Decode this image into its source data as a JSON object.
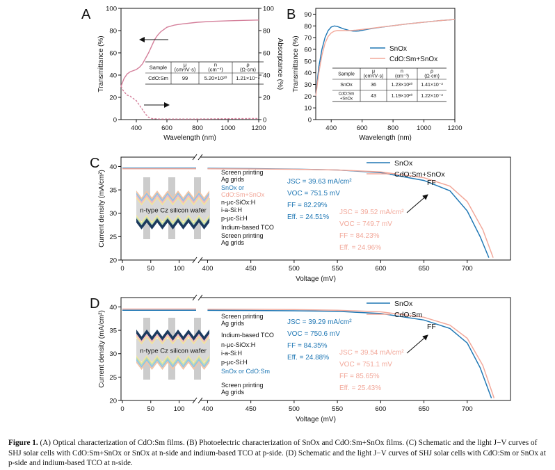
{
  "colors": {
    "blue": "#1f77b4",
    "pink": "#f2a89a",
    "tA": "#d47f9a",
    "gray": "#555555",
    "wafer": "#d8d8d8",
    "navy": "#1c3a5e",
    "ag": "#cccccc"
  },
  "panelA": {
    "label": "A",
    "chart_data": {
      "type": "line",
      "title": "",
      "xlabel": "Wavelength (nm)",
      "ylabel": "Transmittance (%)",
      "y2label": "Absorptance (%)",
      "xlim": [
        300,
        1200
      ],
      "ylim": [
        0,
        100
      ],
      "y2lim": [
        0,
        100
      ],
      "xticks": [
        "400",
        "600",
        "800",
        "1000",
        "1200"
      ],
      "yticks": [
        "0",
        "20",
        "40",
        "60",
        "80",
        "100"
      ],
      "y2ticks": [
        "0",
        "20",
        "40",
        "60",
        "80",
        "100"
      ],
      "series": [
        {
          "name": "Transmittance",
          "axis": "left",
          "style": "solid",
          "x": [
            300,
            320,
            340,
            360,
            380,
            400,
            420,
            440,
            460,
            480,
            500,
            520,
            540,
            560,
            580,
            600,
            650,
            700,
            800,
            900,
            1000,
            1100,
            1200
          ],
          "y": [
            30,
            37,
            41,
            43,
            44,
            45,
            47,
            50,
            55,
            60,
            66,
            72,
            76,
            79,
            81,
            83,
            85,
            86,
            87.5,
            88.3,
            88.8,
            89.2,
            89.5
          ]
        },
        {
          "name": "Absorptance",
          "axis": "right",
          "style": "dashed",
          "x": [
            300,
            310,
            320,
            340,
            360,
            380,
            400,
            420,
            440,
            460,
            480,
            500,
            550,
            600,
            800,
            1000,
            1200
          ],
          "y": [
            30,
            27,
            25,
            22,
            21,
            19,
            17,
            13,
            9,
            5,
            2,
            1,
            0.5,
            0.5,
            0.5,
            0.8,
            1
          ]
        }
      ]
    },
    "table": {
      "headers": [
        "Sample",
        "μ (cm²/V·s)",
        "n (cm⁻³)",
        "ρ (Ω·cm)"
      ],
      "rows": [
        [
          "CdO:Sm",
          "99",
          "5.20×10²⁰",
          "1.21×10⁻⁴"
        ]
      ]
    }
  },
  "panelB": {
    "label": "B",
    "chart_data": {
      "type": "line",
      "xlabel": "Wavelength (nm)",
      "ylabel": "Transmittance (%)",
      "xlim": [
        300,
        1200
      ],
      "ylim": [
        0,
        95
      ],
      "xticks": [
        "400",
        "600",
        "800",
        "1000",
        "1200"
      ],
      "yticks": [
        "0",
        "10",
        "20",
        "30",
        "40",
        "50",
        "60",
        "70",
        "80",
        "90"
      ],
      "series": [
        {
          "name": "SnOx",
          "x": [
            300,
            320,
            340,
            360,
            380,
            400,
            420,
            440,
            460,
            480,
            500,
            520,
            540,
            560,
            580,
            600,
            650,
            700,
            800,
            900,
            1000,
            1100,
            1200
          ],
          "y": [
            20,
            45,
            60,
            70,
            76,
            79,
            80,
            79.5,
            78.5,
            77.5,
            76.8,
            76,
            75.6,
            75.5,
            75.7,
            76.2,
            77.5,
            78.5,
            80.2,
            81.8,
            83.2,
            84.5,
            85.5
          ]
        },
        {
          "name": "CdO:Sm+SnOx",
          "x": [
            300,
            320,
            340,
            360,
            380,
            400,
            420,
            440,
            460,
            480,
            500,
            520,
            540,
            560,
            580,
            600,
            650,
            700,
            800,
            900,
            1000,
            1100,
            1200
          ],
          "y": [
            20,
            40,
            55,
            65,
            71,
            74,
            75.5,
            76,
            76,
            76,
            76,
            76,
            76.2,
            76.4,
            76.7,
            77,
            77.8,
            78.6,
            80.2,
            81.8,
            83.2,
            84.5,
            85.5
          ]
        }
      ]
    },
    "table": {
      "headers": [
        "Sample",
        "μ (cm²/V·s)",
        "n (cm⁻³)",
        "ρ (Ω·cm)"
      ],
      "rows": [
        [
          "SnOx",
          "36",
          "1.23×10²⁰",
          "1.41×10⁻³"
        ],
        [
          "CdO:Sm +SnOx",
          "43",
          "1.19×10²⁰",
          "1.22×10⁻³"
        ]
      ]
    }
  },
  "panelC": {
    "label": "C",
    "chart_data": {
      "type": "line",
      "xlabel": "Voltage (mV)",
      "ylabel": "Current density (mA/cm²)",
      "xlim": [
        0,
        750
      ],
      "ylim": [
        20,
        42
      ],
      "xticks": [
        "0",
        "50",
        "100",
        "400",
        "450",
        "500",
        "550",
        "600",
        "650",
        "700"
      ],
      "yticks": [
        "20",
        "25",
        "30",
        "35",
        "40"
      ],
      "series": [
        {
          "name": "SnOx",
          "x": [
            0,
            400,
            450,
            500,
            550,
            600,
            650,
            680,
            700,
            715,
            725
          ],
          "y": [
            39.63,
            39.6,
            39.55,
            39.45,
            39.25,
            38.7,
            37,
            34.8,
            30.5,
            25,
            20.5
          ]
        },
        {
          "name": "CdO:Sm+SnOx",
          "x": [
            0,
            400,
            450,
            500,
            550,
            600,
            650,
            680,
            700,
            718,
            730
          ],
          "y": [
            39.52,
            39.5,
            39.48,
            39.4,
            39.25,
            38.85,
            37.6,
            35.8,
            32.5,
            26.5,
            20.5
          ]
        }
      ],
      "legend": [
        "SnOx",
        "CdO:Sm+SnOx"
      ],
      "arrow_label": "FF",
      "stats_blue": [
        "JSC = 39.63 mA/cm²",
        "VOC = 751.5 mV",
        "FF = 82.29%",
        "Eff. = 24.51%"
      ],
      "stats_pink": [
        "JSC = 39.52 mA/cm²",
        "VOC = 749.7 mV",
        "FF = 84.23%",
        "Eff. = 24.96%"
      ]
    },
    "schematic": {
      "wafer_label": "n-type Cz silicon wafer",
      "labels": [
        "Screen printing Ag grids",
        "SnOx or CdO:Sm+SnOx",
        "n-μc-SiOx:H",
        "i-a-Si:H",
        "p-μc-Si:H",
        "Indium-based TCO",
        "Screen printing Ag grids"
      ]
    }
  },
  "panelD": {
    "label": "D",
    "chart_data": {
      "type": "line",
      "xlabel": "Voltage (mV)",
      "ylabel": "Current density (mA/cm²)",
      "xlim": [
        0,
        750
      ],
      "ylim": [
        20,
        42
      ],
      "xticks": [
        "0",
        "50",
        "100",
        "400",
        "450",
        "500",
        "550",
        "600",
        "650",
        "700"
      ],
      "yticks": [
        "20",
        "25",
        "30",
        "35",
        "40"
      ],
      "series": [
        {
          "name": "SnOx",
          "x": [
            0,
            400,
            450,
            500,
            550,
            600,
            650,
            680,
            700,
            715,
            728
          ],
          "y": [
            39.29,
            39.27,
            39.24,
            39.18,
            39.05,
            38.6,
            37.2,
            35.4,
            32.3,
            27,
            20.5
          ]
        },
        {
          "name": "CdO:Sm",
          "x": [
            0,
            400,
            450,
            500,
            550,
            600,
            650,
            680,
            700,
            718,
            731
          ],
          "y": [
            39.54,
            39.52,
            39.5,
            39.44,
            39.3,
            38.95,
            37.8,
            36.1,
            33.3,
            27.5,
            20.5
          ]
        }
      ],
      "legend": [
        "SnOx",
        "CdO:Sm"
      ],
      "arrow_label": "FF",
      "stats_blue": [
        "JSC = 39.29 mA/cm²",
        "VOC = 750.6 mV",
        "FF = 84.35%",
        "Eff. = 24.88%"
      ],
      "stats_pink": [
        "JSC = 39.54 mA/cm²",
        "VOC = 751.1 mV",
        "FF = 85.65%",
        "Eff. = 25.43%"
      ]
    },
    "schematic": {
      "wafer_label": "n-type Cz silicon wafer",
      "labels": [
        "Screen printing Ag grids",
        "Indium-based TCO",
        "n-μc-SiOx:H",
        "i-a-Si:H",
        "p-μc-Si:H",
        "SnOx or CdO:Sm",
        "Screen printing Ag grids"
      ]
    }
  },
  "caption": {
    "label": "Figure 1.",
    "text": "(A) Optical characterization of CdO:Sm films. (B) Photoelectric characterization of SnOx and CdO:Sm+SnOx films. (C) Schematic and the light J−V curves of SHJ solar cells with CdO:Sm+SnOx or SnOx at n-side and indium-based TCO at p-side. (D) Schematic and the light J−V curves of SHJ solar cells with CdO:Sm or SnOx at p-side and indium-based TCO at n-side."
  }
}
